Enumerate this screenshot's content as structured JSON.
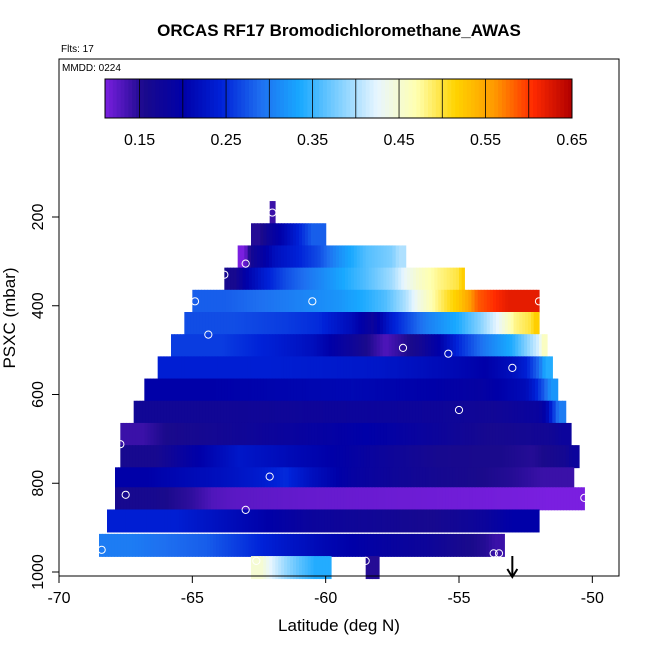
{
  "chart_data": {
    "type": "heatmap",
    "title": "ORCAS RF17 Bromodichloromethane_AWAS",
    "flts_label": "Flts: 17",
    "mmdd_label": "MMDD: 0224",
    "xlabel": "Latitude (deg N)",
    "ylabel": "PSXC (mbar)",
    "xlim": [
      -70,
      -49
    ],
    "ylim": [
      1000,
      100
    ],
    "x_ticks": [
      -70,
      -65,
      -60,
      -55,
      -50
    ],
    "y_ticks": [
      200,
      400,
      600,
      800,
      1000
    ],
    "colorbar": {
      "range": [
        0.11,
        0.65
      ],
      "ticks": [
        0.15,
        0.25,
        0.35,
        0.45,
        0.55,
        0.65
      ],
      "tick_labels": [
        "0.15",
        "0.25",
        "0.35",
        "0.45",
        "0.55",
        "0.65"
      ],
      "colors": [
        "#7a1fe0",
        "#1a0a8c",
        "#0000a8",
        "#0022d8",
        "#1e6ff0",
        "#18a8ff",
        "#7fcfff",
        "#e8f6ff",
        "#ffffb0",
        "#ffd400",
        "#ff9a00",
        "#ff2a00",
        "#b00000"
      ]
    },
    "rows": [
      {
        "p": 190,
        "segments": [
          {
            "x0": -62.1,
            "x1": -61.9,
            "v": 0.14
          }
        ]
      },
      {
        "p": 240,
        "segments": [
          {
            "x0": -62.8,
            "x1": -62.1,
            "v": 0.15
          },
          {
            "x0": -62.1,
            "x1": -61.0,
            "v": 0.21
          },
          {
            "x0": -61.0,
            "x1": -60.0,
            "v": 0.28
          }
        ]
      },
      {
        "p": 290,
        "segments": [
          {
            "x0": -63.3,
            "x1": -62.8,
            "v": 0.11
          },
          {
            "x0": -62.8,
            "x1": -61.0,
            "v": 0.22
          },
          {
            "x0": -61.0,
            "x1": -59.5,
            "v": 0.27
          },
          {
            "x0": -59.5,
            "x1": -57.5,
            "v": 0.36
          },
          {
            "x0": -57.5,
            "x1": -57.0,
            "v": 0.4
          }
        ]
      },
      {
        "p": 340,
        "segments": [
          {
            "x0": -63.8,
            "x1": -63.0,
            "v": 0.16
          },
          {
            "x0": -63.0,
            "x1": -61.5,
            "v": 0.24
          },
          {
            "x0": -61.5,
            "x1": -59.5,
            "v": 0.3
          },
          {
            "x0": -59.5,
            "x1": -57.5,
            "v": 0.36
          },
          {
            "x0": -57.5,
            "x1": -56.5,
            "v": 0.43
          },
          {
            "x0": -56.5,
            "x1": -55.0,
            "v": 0.48
          },
          {
            "x0": -55.0,
            "x1": -54.8,
            "v": 0.52
          }
        ]
      },
      {
        "p": 390,
        "segments": [
          {
            "x0": -65.0,
            "x1": -62.5,
            "v": 0.28
          },
          {
            "x0": -62.5,
            "x1": -60.5,
            "v": 0.3
          },
          {
            "x0": -60.5,
            "x1": -58.5,
            "v": 0.32
          },
          {
            "x0": -58.5,
            "x1": -57.0,
            "v": 0.36
          },
          {
            "x0": -57.0,
            "x1": -56.0,
            "v": 0.44
          },
          {
            "x0": -56.0,
            "x1": -55.0,
            "v": 0.5
          },
          {
            "x0": -55.0,
            "x1": -54.3,
            "v": 0.55
          },
          {
            "x0": -54.3,
            "x1": -52.0,
            "v": 0.62
          }
        ]
      },
      {
        "p": 440,
        "segments": [
          {
            "x0": -65.3,
            "x1": -61.5,
            "v": 0.27
          },
          {
            "x0": -61.5,
            "x1": -59.0,
            "v": 0.25
          },
          {
            "x0": -59.0,
            "x1": -57.5,
            "v": 0.18
          },
          {
            "x0": -57.5,
            "x1": -55.0,
            "v": 0.3
          },
          {
            "x0": -55.0,
            "x1": -53.5,
            "v": 0.38
          },
          {
            "x0": -53.5,
            "x1": -52.3,
            "v": 0.48
          },
          {
            "x0": -52.3,
            "x1": -52.0,
            "v": 0.52
          }
        ]
      },
      {
        "p": 490,
        "segments": [
          {
            "x0": -65.8,
            "x1": -62.0,
            "v": 0.26
          },
          {
            "x0": -62.0,
            "x1": -59.0,
            "v": 0.22
          },
          {
            "x0": -59.0,
            "x1": -56.5,
            "v": 0.13
          },
          {
            "x0": -56.5,
            "x1": -55.0,
            "v": 0.2
          },
          {
            "x0": -55.0,
            "x1": -53.0,
            "v": 0.3
          },
          {
            "x0": -53.0,
            "x1": -52.0,
            "v": 0.38
          },
          {
            "x0": -52.0,
            "x1": -51.7,
            "v": 0.46
          }
        ]
      },
      {
        "p": 540,
        "segments": [
          {
            "x0": -66.3,
            "x1": -58.0,
            "v": 0.24
          },
          {
            "x0": -58.0,
            "x1": -55.0,
            "v": 0.22
          },
          {
            "x0": -55.0,
            "x1": -53.0,
            "v": 0.2
          },
          {
            "x0": -53.0,
            "x1": -52.0,
            "v": 0.24
          },
          {
            "x0": -52.0,
            "x1": -51.5,
            "v": 0.34
          }
        ]
      },
      {
        "p": 590,
        "segments": [
          {
            "x0": -66.8,
            "x1": -62.0,
            "v": 0.2
          },
          {
            "x0": -62.0,
            "x1": -56.0,
            "v": 0.21
          },
          {
            "x0": -56.0,
            "x1": -52.5,
            "v": 0.19
          },
          {
            "x0": -52.5,
            "x1": -51.8,
            "v": 0.24
          },
          {
            "x0": -51.8,
            "x1": -51.3,
            "v": 0.32
          }
        ]
      },
      {
        "p": 640,
        "segments": [
          {
            "x0": -67.2,
            "x1": -61.0,
            "v": 0.17
          },
          {
            "x0": -61.0,
            "x1": -55.5,
            "v": 0.18
          },
          {
            "x0": -55.5,
            "x1": -52.0,
            "v": 0.17
          },
          {
            "x0": -52.0,
            "x1": -51.5,
            "v": 0.2
          },
          {
            "x0": -51.5,
            "x1": -51.0,
            "v": 0.3
          }
        ]
      },
      {
        "p": 690,
        "segments": [
          {
            "x0": -67.7,
            "x1": -66.0,
            "v": 0.14
          },
          {
            "x0": -66.0,
            "x1": -61.0,
            "v": 0.17
          },
          {
            "x0": -61.0,
            "x1": -56.0,
            "v": 0.2
          },
          {
            "x0": -56.0,
            "x1": -51.5,
            "v": 0.16
          },
          {
            "x0": -51.5,
            "x1": -50.8,
            "v": 0.18
          }
        ]
      },
      {
        "p": 740,
        "segments": [
          {
            "x0": -67.7,
            "x1": -65.0,
            "v": 0.16
          },
          {
            "x0": -65.0,
            "x1": -61.5,
            "v": 0.23
          },
          {
            "x0": -61.5,
            "x1": -58.0,
            "v": 0.2
          },
          {
            "x0": -58.0,
            "x1": -53.5,
            "v": 0.16
          },
          {
            "x0": -53.5,
            "x1": -51.0,
            "v": 0.15
          },
          {
            "x0": -51.0,
            "x1": -50.5,
            "v": 0.18
          }
        ]
      },
      {
        "p": 790,
        "segments": [
          {
            "x0": -67.9,
            "x1": -65.5,
            "v": 0.2
          },
          {
            "x0": -65.5,
            "x1": -62.5,
            "v": 0.22
          },
          {
            "x0": -62.5,
            "x1": -60.5,
            "v": 0.25
          },
          {
            "x0": -60.5,
            "x1": -57.5,
            "v": 0.19
          },
          {
            "x0": -57.5,
            "x1": -53.0,
            "v": 0.16
          },
          {
            "x0": -53.0,
            "x1": -50.7,
            "v": 0.14
          }
        ]
      },
      {
        "p": 835,
        "segments": [
          {
            "x0": -67.9,
            "x1": -65.0,
            "v": 0.16
          },
          {
            "x0": -65.0,
            "x1": -63.5,
            "v": 0.13
          },
          {
            "x0": -63.5,
            "x1": -58.0,
            "v": 0.12
          },
          {
            "x0": -58.0,
            "x1": -53.0,
            "v": 0.115
          },
          {
            "x0": -53.0,
            "x1": -50.3,
            "v": 0.11
          }
        ]
      },
      {
        "p": 885,
        "segments": [
          {
            "x0": -68.2,
            "x1": -63.0,
            "v": 0.24
          },
          {
            "x0": -63.0,
            "x1": -58.0,
            "v": 0.18
          },
          {
            "x0": -58.0,
            "x1": -54.0,
            "v": 0.16
          },
          {
            "x0": -54.0,
            "x1": -52.0,
            "v": 0.2
          }
        ]
      },
      {
        "p": 940,
        "segments": [
          {
            "x0": -68.5,
            "x1": -66.0,
            "v": 0.3
          },
          {
            "x0": -66.0,
            "x1": -63.0,
            "v": 0.28
          },
          {
            "x0": -63.0,
            "x1": -60.0,
            "v": 0.23
          },
          {
            "x0": -60.0,
            "x1": -56.0,
            "v": 0.19
          },
          {
            "x0": -56.0,
            "x1": -54.0,
            "v": 0.16
          },
          {
            "x0": -54.0,
            "x1": -53.3,
            "v": 0.14
          }
        ]
      },
      {
        "p": 990,
        "segments": [
          {
            "x0": -62.8,
            "x1": -62.0,
            "v": 0.45
          },
          {
            "x0": -62.0,
            "x1": -61.0,
            "v": 0.39
          },
          {
            "x0": -61.0,
            "x1": -59.8,
            "v": 0.34
          },
          {
            "x0": -58.5,
            "x1": -58.0,
            "v": 0.15
          }
        ]
      }
    ],
    "points": [
      {
        "x": -62.0,
        "y": 190
      },
      {
        "x": -63.0,
        "y": 305
      },
      {
        "x": -63.8,
        "y": 330
      },
      {
        "x": -64.9,
        "y": 390
      },
      {
        "x": -60.5,
        "y": 390
      },
      {
        "x": -52.0,
        "y": 390
      },
      {
        "x": -64.4,
        "y": 465
      },
      {
        "x": -57.1,
        "y": 495
      },
      {
        "x": -55.4,
        "y": 508
      },
      {
        "x": -53.0,
        "y": 540
      },
      {
        "x": -55.0,
        "y": 635
      },
      {
        "x": -67.7,
        "y": 712
      },
      {
        "x": -62.1,
        "y": 785
      },
      {
        "x": -67.5,
        "y": 826
      },
      {
        "x": -50.3,
        "y": 833
      },
      {
        "x": -63.0,
        "y": 860
      },
      {
        "x": -68.4,
        "y": 950
      },
      {
        "x": -53.7,
        "y": 958
      },
      {
        "x": -53.5,
        "y": 958
      },
      {
        "x": -62.6,
        "y": 975
      },
      {
        "x": -58.5,
        "y": 975
      }
    ],
    "arrow_x": -53.0
  }
}
